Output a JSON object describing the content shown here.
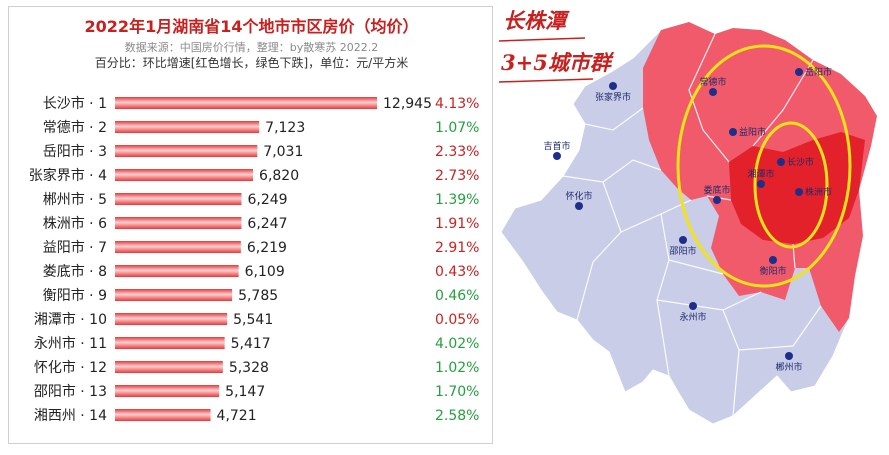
{
  "chart_data": {
    "type": "bar",
    "orientation": "horizontal",
    "title": "2022年1月湖南省14个地市市区房价（均价）",
    "source": "数据来源：中国房价行情，整理：by散寒苏  2022.2",
    "note": "百分比：环比增速[红色增长，绿色下跌]，单位：元/平方米",
    "categories": [
      "长沙市 · 1",
      "常德市 · 2",
      "岳阳市 · 3",
      "张家界市 · 4",
      "郴州市 · 5",
      "株洲市 · 6",
      "益阳市 · 7",
      "娄底市 · 8",
      "衡阳市 · 9",
      "湘潭市 · 10",
      "永州市 · 11",
      "怀化市 · 12",
      "邵阳市 · 13",
      "湘西州 · 14"
    ],
    "values": [
      12945,
      7123,
      7031,
      6820,
      6249,
      6247,
      6219,
      6109,
      5785,
      5541,
      5417,
      5328,
      5147,
      4721
    ],
    "value_labels": [
      "12,945",
      "7,123",
      "7,031",
      "6,820",
      "6,249",
      "6,247",
      "6,219",
      "6,109",
      "5,785",
      "5,541",
      "5,417",
      "5,328",
      "5,147",
      "4,721"
    ],
    "mom_change": [
      "4.13%",
      "1.07%",
      "2.33%",
      "2.73%",
      "1.39%",
      "1.91%",
      "2.91%",
      "0.43%",
      "0.46%",
      "0.05%",
      "4.02%",
      "1.02%",
      "1.70%",
      "2.58%"
    ],
    "mom_color": [
      "red",
      "green",
      "red",
      "red",
      "green",
      "red",
      "red",
      "red",
      "green",
      "red",
      "green",
      "green",
      "green",
      "green"
    ],
    "xlim": [
      0,
      13000
    ],
    "grid": false,
    "legend": "none",
    "colors": {
      "bar": "#e8373a",
      "bar_highlight": "#ffd0d0",
      "red": "#d0201d",
      "green": "#22a23c"
    }
  },
  "map": {
    "badge_line1": "长株潭",
    "badge_line2": "3+5城市群",
    "cities": [
      "张家界市",
      "常德市",
      "岳阳市",
      "吉首市",
      "益阳市",
      "长沙市",
      "湘潭市",
      "株洲市",
      "娄底市",
      "怀化市",
      "邵阳市",
      "衡阳市",
      "永州市",
      "郴州市"
    ],
    "colors": {
      "base": "#c9cde8",
      "region": "#f05a6a",
      "core": "#e3212b",
      "ring": "#f2e21a",
      "dot": "#1e2f8a"
    }
  }
}
